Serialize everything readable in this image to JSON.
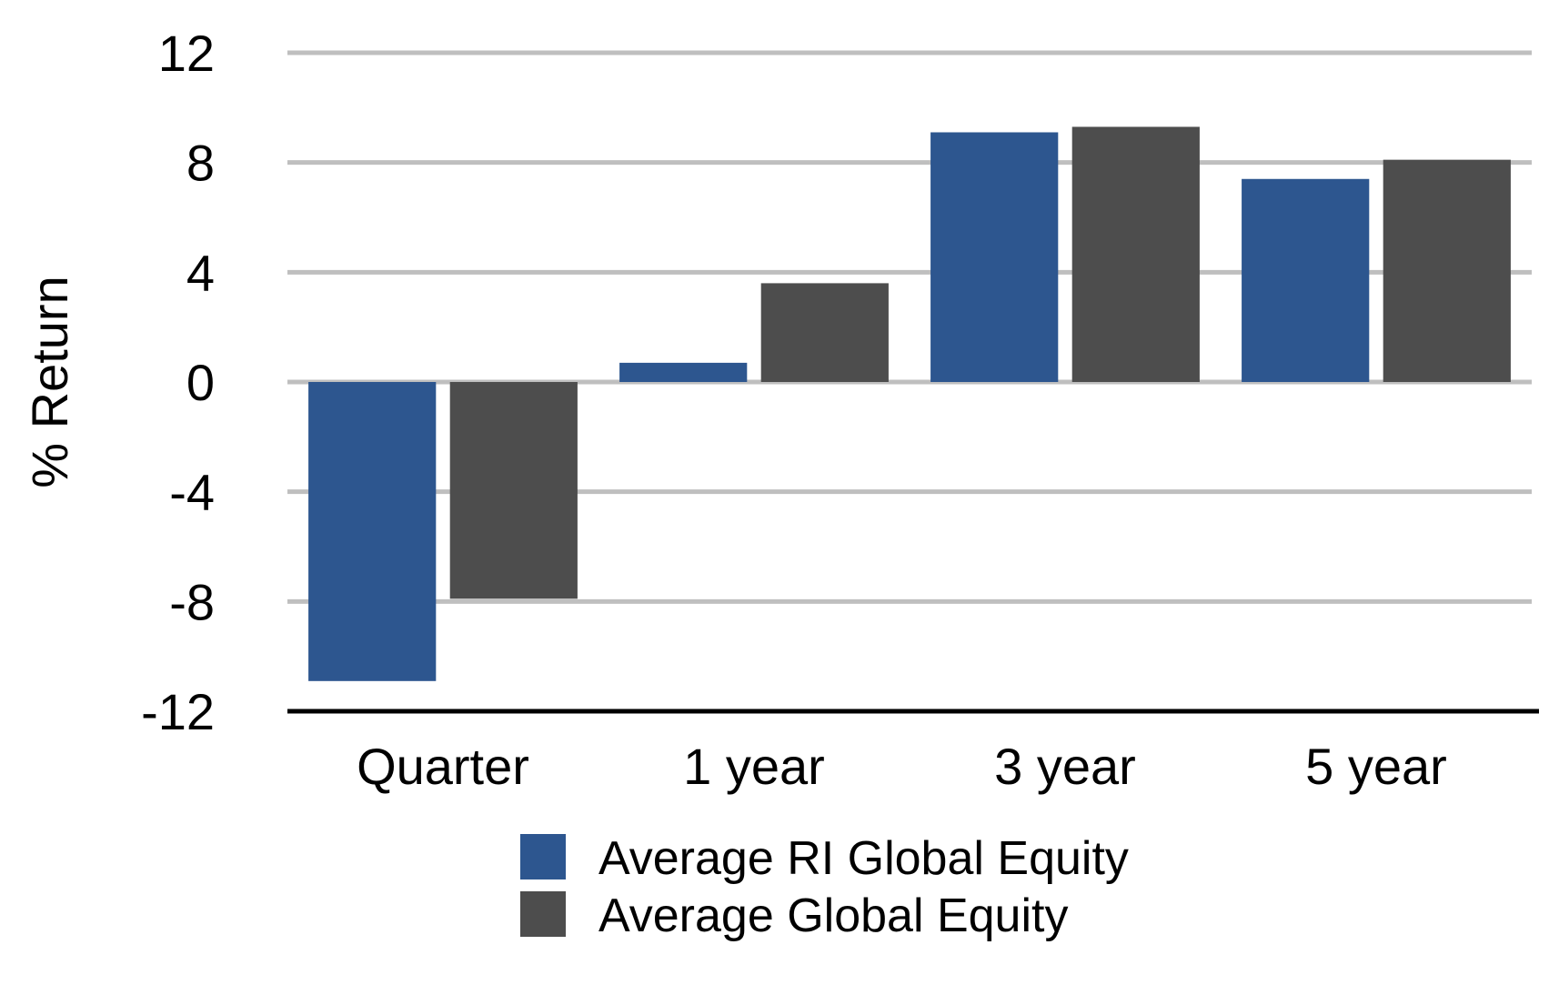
{
  "chart_data": {
    "type": "bar",
    "title": "",
    "xlabel": "",
    "ylabel": "% Return",
    "categories": [
      "Quarter",
      "1 year",
      "3 year",
      "5 year"
    ],
    "series": [
      {
        "name": "Average RI Global Equity",
        "color": "#2d568f",
        "values": [
          -10.9,
          0.7,
          9.1,
          7.4
        ]
      },
      {
        "name": "Average Global Equity",
        "color": "#4d4d4d",
        "values": [
          -7.9,
          3.6,
          9.3,
          8.1
        ]
      }
    ],
    "ylim": [
      -12,
      12
    ],
    "yticks": [
      12,
      8,
      4,
      0,
      -4,
      -8,
      -12
    ],
    "ytick_labels": [
      "12",
      "8",
      "4",
      "0",
      "-4",
      "-8",
      "-12"
    ],
    "grid": true,
    "grid_color": "#bfbfbf",
    "legend_position": "bottom-center"
  }
}
